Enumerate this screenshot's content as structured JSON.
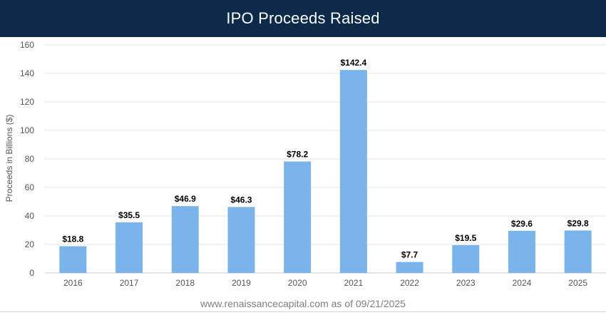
{
  "header": {
    "title": "IPO Proceeds Raised"
  },
  "source_note": "www.renaissancecapital.com as of 09/21/2025",
  "chart_data": {
    "type": "bar",
    "title": "IPO Proceeds Raised",
    "xlabel": "",
    "ylabel": "Proceeds in Billions ($)",
    "categories": [
      "2016",
      "2017",
      "2018",
      "2019",
      "2020",
      "2021",
      "2022",
      "2023",
      "2024",
      "2025"
    ],
    "values": [
      18.8,
      35.5,
      46.9,
      46.3,
      78.2,
      142.4,
      7.7,
      19.5,
      29.6,
      29.8
    ],
    "data_labels": [
      "$18.8",
      "$35.5",
      "$46.9",
      "$46.3",
      "$78.2",
      "$142.4",
      "$7.7",
      "$19.5",
      "$29.6",
      "$29.8"
    ],
    "ylim": [
      0,
      160
    ],
    "yticks": [
      0,
      20,
      40,
      60,
      80,
      100,
      120,
      140,
      160
    ],
    "grid": true,
    "legend": "none",
    "colors": {
      "bar": "#7ab4ea",
      "grid": "#e6e6e6",
      "axis_text": "#555555",
      "label_text": "#000000"
    }
  }
}
